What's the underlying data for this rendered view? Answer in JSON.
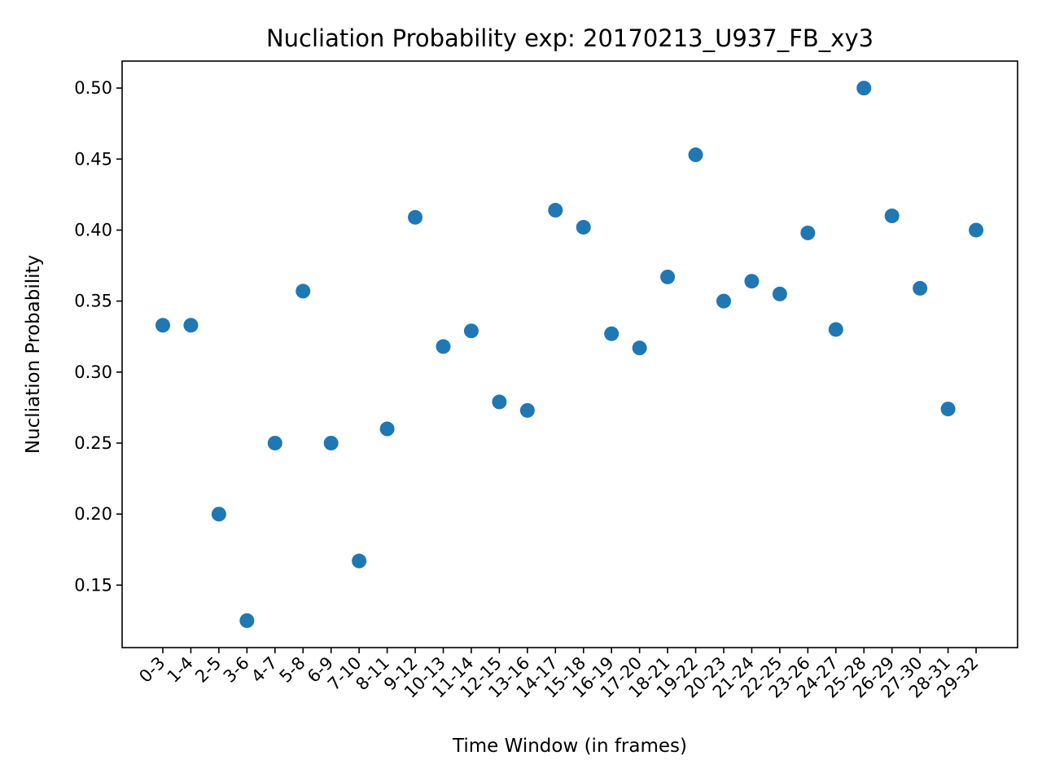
{
  "chart_data": {
    "type": "scatter",
    "title": "Nucliation Probability exp: 20170213_U937_FB_xy3",
    "xlabel": "Time Window (in frames)",
    "ylabel": "Nucliation Probability",
    "categories": [
      "0-3",
      "1-4",
      "2-5",
      "3-6",
      "4-7",
      "5-8",
      "6-9",
      "7-10",
      "8-11",
      "9-12",
      "10-13",
      "11-14",
      "12-15",
      "13-16",
      "14-17",
      "15-18",
      "16-19",
      "17-20",
      "18-21",
      "19-22",
      "20-23",
      "21-24",
      "22-25",
      "23-26",
      "24-27",
      "25-28",
      "26-29",
      "27-30",
      "28-31",
      "29-32"
    ],
    "values": [
      0.333,
      0.333,
      0.2,
      0.125,
      0.25,
      0.357,
      0.25,
      0.167,
      0.26,
      0.409,
      0.318,
      0.329,
      0.279,
      0.273,
      0.414,
      0.402,
      0.327,
      0.317,
      0.367,
      0.453,
      0.35,
      0.364,
      0.355,
      0.398,
      0.33,
      0.5,
      0.41,
      0.359,
      0.274,
      0.4
    ],
    "yticks": [
      "0.15",
      "0.20",
      "0.25",
      "0.30",
      "0.35",
      "0.40",
      "0.45",
      "0.50"
    ],
    "ylim": [
      0.106,
      0.519
    ],
    "grid": false,
    "marker_color": "#1f77b4"
  }
}
